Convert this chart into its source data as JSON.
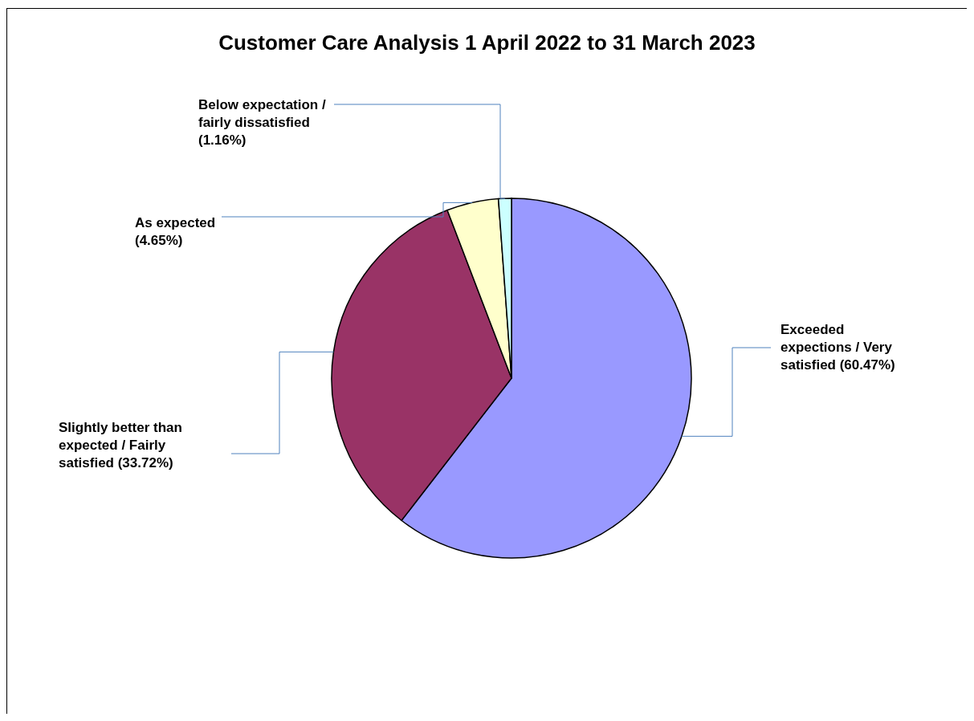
{
  "chart_data": {
    "type": "pie",
    "title": "Customer Care Analysis 1 April 2022 to 31 March 2023",
    "categories": [
      "Exceeded expections / Very satisfied",
      "Slightly better than expected / Fairly satisfied",
      "As expected",
      "Below expectation / fairly dissatisfied"
    ],
    "values": [
      60.47,
      33.72,
      4.65,
      1.16
    ],
    "value_labels": [
      "(60.47%)",
      "(33.72%)",
      "(4.65%)",
      "(1.16%)"
    ],
    "colors": [
      "#9999ff",
      "#993366",
      "#ffffcc",
      "#ccffff"
    ]
  }
}
